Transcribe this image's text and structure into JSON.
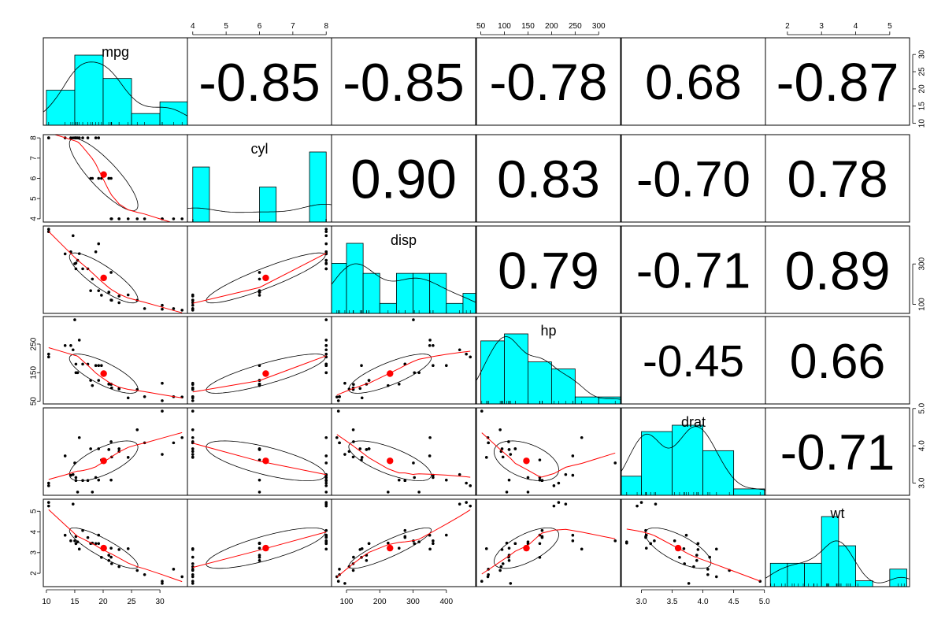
{
  "chart_data": {
    "type": "scatter-matrix",
    "variables": [
      "mpg",
      "cyl",
      "disp",
      "hp",
      "drat",
      "wt"
    ],
    "ranges": {
      "mpg": [
        10.4,
        33.9
      ],
      "cyl": [
        4,
        8
      ],
      "disp": [
        71.1,
        472
      ],
      "hp": [
        52,
        335
      ],
      "drat": [
        2.76,
        4.93
      ],
      "wt": [
        1.513,
        5.424
      ]
    },
    "ticks": {
      "mpg": [
        "10",
        "15",
        "20",
        "25",
        "30"
      ],
      "cyl": [
        "4",
        "5",
        "6",
        "7",
        "8"
      ],
      "disp": [
        "100",
        "200",
        "300",
        "400"
      ],
      "disp_right": [
        "100",
        "300"
      ],
      "hp": [
        "50",
        "100",
        "150",
        "200",
        "250",
        "300"
      ],
      "hp_left": [
        "50",
        "150",
        "250"
      ],
      "drat": [
        "3.0",
        "3.5",
        "4.0",
        "4.5",
        "5.0"
      ],
      "drat_right": [
        "3.0",
        "4.0",
        "5.0"
      ],
      "wt": [
        "2",
        "3",
        "4",
        "5"
      ],
      "mpg_right": [
        "10",
        "15",
        "20",
        "25",
        "30"
      ],
      "cyl_left": [
        "4",
        "5",
        "6",
        "7",
        "8"
      ],
      "wt_left": [
        "2",
        "3",
        "4",
        "5"
      ]
    },
    "correlations": [
      {
        "row": 0,
        "col": 1,
        "label": "-0.85",
        "value": -0.85
      },
      {
        "row": 0,
        "col": 2,
        "label": "-0.85",
        "value": -0.85
      },
      {
        "row": 0,
        "col": 3,
        "label": "-0.78",
        "value": -0.78
      },
      {
        "row": 0,
        "col": 4,
        "label": "0.68",
        "value": 0.68
      },
      {
        "row": 0,
        "col": 5,
        "label": "-0.87",
        "value": -0.87
      },
      {
        "row": 1,
        "col": 2,
        "label": "0.90",
        "value": 0.9
      },
      {
        "row": 1,
        "col": 3,
        "label": "0.83",
        "value": 0.83
      },
      {
        "row": 1,
        "col": 4,
        "label": "-0.70",
        "value": -0.7
      },
      {
        "row": 1,
        "col": 5,
        "label": "0.78",
        "value": 0.78
      },
      {
        "row": 2,
        "col": 3,
        "label": "0.79",
        "value": 0.79
      },
      {
        "row": 2,
        "col": 4,
        "label": "-0.71",
        "value": -0.71
      },
      {
        "row": 2,
        "col": 5,
        "label": "0.89",
        "value": 0.89
      },
      {
        "row": 3,
        "col": 4,
        "label": "-0.45",
        "value": -0.45
      },
      {
        "row": 3,
        "col": 5,
        "label": "0.66",
        "value": 0.66
      },
      {
        "row": 4,
        "col": 5,
        "label": "-0.71",
        "value": -0.71
      }
    ],
    "histograms": {
      "mpg": {
        "breaks": [
          10,
          15,
          20,
          25,
          30,
          35
        ],
        "counts": [
          6,
          12,
          8,
          2,
          4
        ]
      },
      "cyl": {
        "breaks": [
          4,
          4.5,
          5,
          5.5,
          6,
          6.5,
          7,
          7.5,
          8
        ],
        "counts": [
          11,
          0,
          0,
          0,
          7,
          0,
          0,
          14
        ]
      },
      "disp": {
        "breaks": [
          50,
          100,
          150,
          200,
          250,
          300,
          350,
          400,
          450,
          500
        ],
        "counts": [
          5,
          7,
          4,
          1,
          4,
          4,
          4,
          1,
          2
        ]
      },
      "hp": {
        "breaks": [
          50,
          100,
          150,
          200,
          250,
          300,
          350
        ],
        "counts": [
          9,
          10,
          6,
          5,
          1,
          1
        ]
      },
      "drat": {
        "breaks": [
          2.5,
          3,
          3.5,
          4,
          4.5,
          5
        ],
        "counts": [
          3,
          10,
          11,
          7,
          1
        ]
      },
      "wt": {
        "breaks": [
          1.5,
          2,
          2.5,
          3,
          3.5,
          4,
          4.5,
          5,
          5.5
        ],
        "counts": [
          4,
          4,
          4,
          12,
          7,
          1,
          0,
          3
        ]
      }
    },
    "data": {
      "mpg": [
        21,
        21,
        22.8,
        21.4,
        18.7,
        18.1,
        14.3,
        24.4,
        22.8,
        19.2,
        17.8,
        16.4,
        17.3,
        15.2,
        10.4,
        10.4,
        14.7,
        32.4,
        30.4,
        33.9,
        21.5,
        15.5,
        15.2,
        13.3,
        19.2,
        27.3,
        26,
        30.4,
        15.8,
        19.7,
        15,
        21.4
      ],
      "cyl": [
        6,
        6,
        4,
        6,
        8,
        6,
        8,
        4,
        4,
        6,
        6,
        8,
        8,
        8,
        8,
        8,
        8,
        4,
        4,
        4,
        4,
        8,
        8,
        8,
        8,
        4,
        4,
        4,
        8,
        6,
        8,
        4
      ],
      "disp": [
        160,
        160,
        108,
        258,
        360,
        225,
        360,
        146.7,
        140.8,
        167.6,
        167.6,
        275.8,
        275.8,
        275.8,
        472,
        460,
        440,
        78.7,
        75.7,
        71.1,
        120.1,
        318,
        304,
        350,
        400,
        79,
        120.3,
        95.1,
        351,
        145,
        301,
        121
      ],
      "hp": [
        110,
        110,
        93,
        110,
        175,
        105,
        245,
        62,
        95,
        123,
        123,
        180,
        180,
        180,
        205,
        215,
        230,
        66,
        52,
        65,
        97,
        150,
        150,
        245,
        175,
        66,
        91,
        113,
        264,
        175,
        335,
        109
      ],
      "drat": [
        3.9,
        3.9,
        3.85,
        3.08,
        3.15,
        2.76,
        3.21,
        3.69,
        3.92,
        3.92,
        3.92,
        3.07,
        3.07,
        3.07,
        2.93,
        3,
        3.23,
        4.08,
        4.93,
        4.22,
        3.7,
        2.76,
        3.15,
        3.73,
        3.08,
        4.08,
        4.43,
        3.77,
        4.22,
        3.62,
        3.54,
        4.11
      ],
      "wt": [
        2.62,
        2.875,
        2.32,
        3.215,
        3.44,
        3.46,
        3.57,
        3.19,
        3.15,
        3.44,
        3.44,
        4.07,
        3.73,
        3.78,
        5.25,
        5.424,
        5.345,
        2.2,
        1.615,
        1.835,
        2.465,
        3.52,
        3.435,
        3.84,
        3.845,
        1.935,
        2.14,
        1.513,
        3.17,
        2.77,
        3.57,
        2.78
      ]
    },
    "colors": {
      "bar_fill": "#00ffff",
      "point": "#000000",
      "centroid": "#ff0000",
      "smooth_line": "#ff0000",
      "ellipse": "#000000",
      "density": "#000000",
      "frame": "#000000"
    },
    "grid": false
  }
}
